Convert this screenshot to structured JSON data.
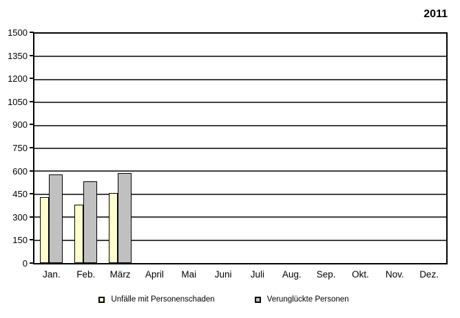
{
  "chart_data": {
    "type": "bar",
    "title": "2011",
    "categories": [
      "Jan.",
      "Feb.",
      "März",
      "April",
      "Mai",
      "Juni",
      "Juli",
      "Aug.",
      "Sep.",
      "Okt.",
      "Nov.",
      "Dez."
    ],
    "series": [
      {
        "name": "Unfälle mit Personenschaden",
        "color": "#ffffcc",
        "values": [
          430,
          380,
          460,
          null,
          null,
          null,
          null,
          null,
          null,
          null,
          null,
          null
        ]
      },
      {
        "name": "Verunglückte Personen",
        "color": "#c0c0c0",
        "values": [
          580,
          535,
          590,
          null,
          null,
          null,
          null,
          null,
          null,
          null,
          null,
          null
        ]
      }
    ],
    "ylim": [
      0,
      1500
    ],
    "yticks": [
      0,
      150,
      300,
      450,
      600,
      750,
      900,
      1050,
      1200,
      1350,
      1500
    ],
    "grid": "horizontal",
    "legend_position": "bottom",
    "plot_background": "#ffffff",
    "frame_color": "#000000",
    "gridline_color": "#3f3f3f"
  }
}
